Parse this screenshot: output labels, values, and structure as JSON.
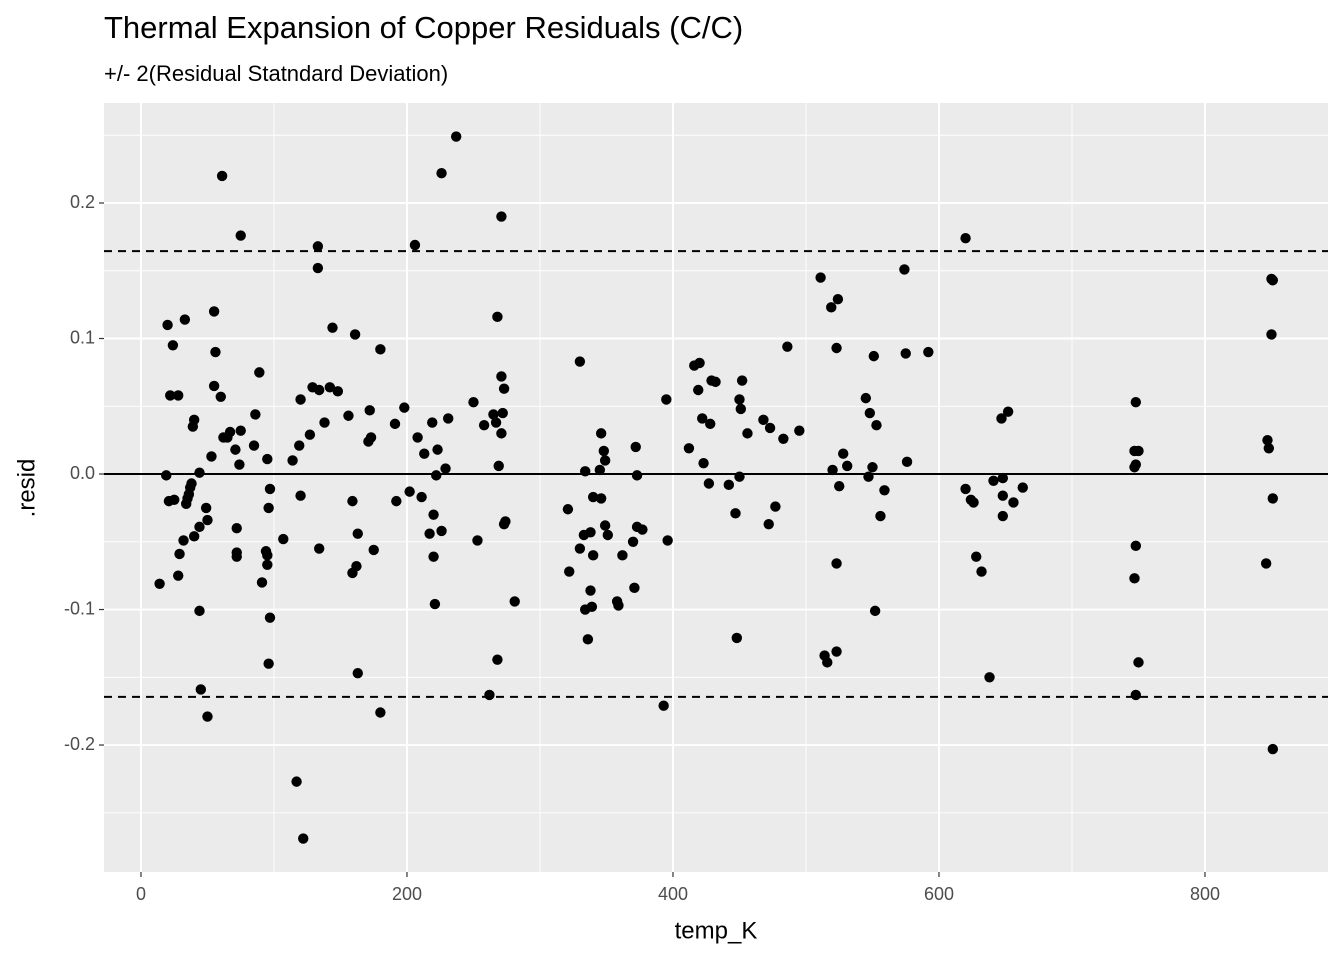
{
  "chart_data": {
    "type": "scatter",
    "title": "Thermal Expansion of Copper Residuals (C/C)",
    "subtitle": "+/- 2(Residual Statndard Deviation)",
    "x_label": "temp_K",
    "y_label": ".resid",
    "xlim": [
      -27.8,
      892.5
    ],
    "ylim": [
      -0.2937,
      0.2738
    ],
    "xticks": [
      0,
      200,
      400,
      600,
      800
    ],
    "yticks": [
      -0.2,
      -0.1,
      {
        "value": 0,
        "label": "0.0"
      },
      0.1,
      0.2
    ],
    "xminor": [
      100,
      300,
      500,
      700
    ],
    "yminor": [
      -0.25,
      -0.15,
      -0.05,
      0.05,
      0.15,
      0.25
    ],
    "grid": true,
    "color": "#000000",
    "hlines": [
      {
        "value": 0.1645,
        "style": "dashed"
      },
      {
        "value": -0.1645,
        "style": "dashed"
      },
      {
        "value": 0,
        "style": "solid"
      }
    ],
    "x": [
      14,
      19,
      20,
      21,
      22,
      24,
      25,
      28,
      28,
      29,
      32,
      33,
      34,
      35,
      36,
      37,
      38,
      39,
      40,
      40,
      44,
      44,
      44,
      45,
      49,
      50,
      50,
      53,
      55,
      56,
      55,
      60,
      61,
      62,
      65,
      67,
      71,
      72,
      72,
      72,
      74,
      75,
      75,
      85,
      86,
      89,
      91,
      95,
      94,
      95,
      95,
      96,
      97,
      97,
      96,
      107,
      114,
      117,
      119,
      120,
      120,
      122,
      127,
      129,
      133,
      133,
      134,
      134,
      138,
      142,
      144,
      148,
      156,
      159,
      159,
      161,
      162,
      163,
      163,
      171,
      172,
      173,
      175,
      180,
      180,
      191,
      192,
      198,
      202,
      206,
      208,
      211,
      213,
      217,
      219,
      220,
      220,
      221,
      222,
      223,
      226,
      226,
      229,
      231,
      237,
      250,
      253,
      258,
      262,
      265,
      267,
      268,
      268,
      269,
      271,
      271,
      271,
      272,
      273,
      273,
      274,
      281,
      321,
      322,
      330,
      330,
      333,
      334,
      334,
      336,
      338,
      338,
      339,
      340,
      340,
      345,
      346,
      346,
      348,
      349,
      349,
      351,
      358,
      359,
      362,
      370,
      371,
      372,
      373,
      373,
      377,
      393,
      395,
      396,
      412,
      416,
      419,
      420,
      422,
      423,
      427,
      428,
      429,
      432,
      442,
      447,
      448,
      450,
      450,
      451,
      452,
      456,
      468,
      472,
      473,
      477,
      483,
      486,
      495,
      511,
      514,
      516,
      519,
      520,
      523,
      523,
      523,
      524,
      525,
      528,
      531,
      545,
      547,
      548,
      550,
      551,
      552,
      553,
      556,
      559,
      574,
      575,
      576,
      592,
      620,
      620,
      624,
      626,
      628,
      632,
      638,
      641,
      647,
      648,
      648,
      648,
      652,
      656,
      663,
      747,
      747,
      747,
      748,
      748,
      748,
      748,
      750,
      750,
      846,
      847,
      848,
      850,
      850,
      851,
      851,
      851
    ],
    "y": [
      -0.081,
      -0.001,
      0.11,
      -0.02,
      0.058,
      0.095,
      -0.019,
      0.058,
      -0.075,
      -0.059,
      -0.049,
      0.114,
      -0.022,
      -0.018,
      -0.015,
      -0.01,
      -0.007,
      0.035,
      0.04,
      -0.046,
      0.001,
      -0.039,
      -0.101,
      -0.159,
      -0.025,
      -0.034,
      -0.179,
      0.013,
      0.12,
      0.09,
      0.065,
      0.057,
      0.22,
      0.027,
      0.027,
      0.031,
      0.018,
      -0.04,
      -0.058,
      -0.061,
      0.007,
      0.032,
      0.176,
      0.021,
      0.044,
      0.075,
      -0.08,
      0.011,
      -0.057,
      -0.067,
      -0.06,
      -0.025,
      -0.011,
      -0.106,
      -0.14,
      -0.048,
      0.01,
      -0.227,
      0.021,
      0.055,
      -0.016,
      -0.269,
      0.029,
      0.064,
      0.168,
      0.152,
      -0.055,
      0.062,
      0.038,
      0.064,
      0.108,
      0.061,
      0.043,
      -0.073,
      -0.02,
      0.103,
      -0.068,
      -0.044,
      -0.147,
      0.024,
      0.047,
      0.027,
      -0.056,
      -0.176,
      0.092,
      0.037,
      -0.02,
      0.049,
      -0.013,
      0.169,
      0.027,
      -0.017,
      0.015,
      -0.044,
      0.038,
      -0.03,
      -0.061,
      -0.096,
      -0.001,
      0.018,
      0.222,
      -0.042,
      0.004,
      0.041,
      0.249,
      0.053,
      -0.049,
      0.036,
      -0.163,
      0.044,
      0.038,
      0.116,
      -0.137,
      0.006,
      0.19,
      0.072,
      0.03,
      0.045,
      0.063,
      -0.037,
      -0.035,
      -0.094,
      -0.026,
      -0.072,
      0.083,
      -0.055,
      -0.045,
      -0.1,
      0.002,
      -0.122,
      -0.043,
      -0.086,
      -0.098,
      -0.017,
      -0.06,
      0.003,
      -0.018,
      0.03,
      0.017,
      0.01,
      -0.038,
      -0.045,
      -0.094,
      -0.097,
      -0.06,
      -0.05,
      -0.084,
      0.02,
      -0.001,
      -0.039,
      -0.041,
      -0.171,
      0.055,
      -0.049,
      0.019,
      0.08,
      0.062,
      0.082,
      0.041,
      0.008,
      -0.007,
      0.037,
      0.069,
      0.068,
      -0.008,
      -0.029,
      -0.121,
      -0.002,
      0.055,
      0.048,
      0.069,
      0.03,
      0.04,
      -0.037,
      0.034,
      -0.024,
      0.026,
      0.094,
      0.032,
      0.145,
      -0.134,
      -0.139,
      0.123,
      0.003,
      -0.131,
      -0.066,
      0.093,
      0.129,
      -0.009,
      0.015,
      0.006,
      0.056,
      -0.002,
      0.045,
      0.005,
      0.087,
      -0.101,
      0.036,
      -0.031,
      -0.012,
      0.151,
      0.089,
      0.009,
      0.09,
      0.174,
      -0.011,
      -0.019,
      -0.021,
      -0.061,
      -0.072,
      -0.15,
      -0.005,
      0.041,
      -0.003,
      -0.031,
      -0.016,
      0.046,
      -0.021,
      -0.01,
      0.005,
      0.017,
      -0.077,
      -0.163,
      0.053,
      0.007,
      -0.053,
      -0.139,
      0.017,
      -0.066,
      0.025,
      0.019,
      0.144,
      0.103,
      0.143,
      -0.018,
      -0.203
    ]
  }
}
